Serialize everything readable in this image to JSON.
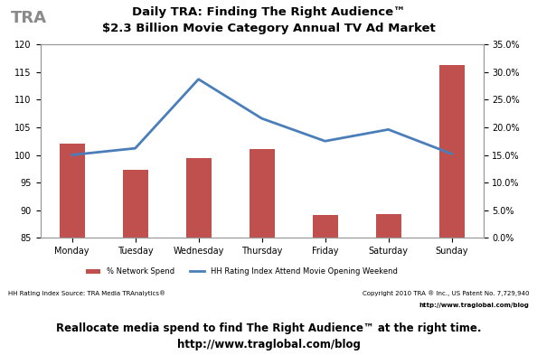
{
  "chart_data": {
    "type": "bar",
    "logo": "TRA",
    "title": "Daily TRA: Finding The Right Audience™",
    "subtitle": "$2.3 Billion Movie Category Annual TV Ad Market",
    "categories": [
      "Monday",
      "Tuesday",
      "Wednesday",
      "Thursday",
      "Friday",
      "Saturday",
      "Sunday"
    ],
    "series": [
      {
        "name": "% Network Spend",
        "type": "bar",
        "color": "#c0504d",
        "axis": "y2",
        "values": [
          17.1,
          12.3,
          14.5,
          16.1,
          4.2,
          4.3,
          31.2
        ]
      },
      {
        "name": "HH Rating Index Attend Movie Opening Weekend",
        "type": "line",
        "color": "#4a7ebb",
        "values": [
          100.0,
          101.2,
          113.7,
          106.6,
          102.5,
          104.6,
          100.2
        ]
      }
    ],
    "ylim": [
      85,
      120
    ],
    "yticks": [
      85,
      90,
      95,
      100,
      105,
      110,
      115,
      120
    ],
    "y2lim": [
      0,
      35
    ],
    "y2ticks": [
      {
        "value": 0,
        "label": "0.0%"
      },
      {
        "value": 5,
        "label": "5.0%"
      },
      {
        "value": 10,
        "label": "10.0%"
      },
      {
        "value": 15,
        "label": "15.0%"
      },
      {
        "value": 20,
        "label": "20.0%"
      },
      {
        "value": 25,
        "label": "25.0%"
      },
      {
        "value": 30,
        "label": "30.0%"
      },
      {
        "value": 35,
        "label": "35.0%"
      }
    ],
    "legend": "upper center",
    "source": "HH Rating Index Source: TRA Media TRAnalytics®",
    "copyright": "Copyright 2010 TRA ® Inc., US Patent No. 7,729,940",
    "copyright_url": "http://www.traglobal.com/blog",
    "footer": [
      "Reallocate media spend to find The Right Audience™ at the right time.",
      "http://www.traglobal.com/blog"
    ]
  }
}
